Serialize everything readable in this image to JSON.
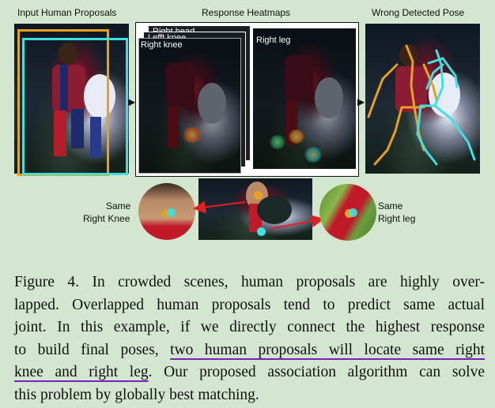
{
  "section_labels": {
    "input": "Input Human Proposals",
    "heatmaps": "Response Heatmaps",
    "wrong": "Wrong Detected Pose"
  },
  "heatmap_panels": {
    "back1": "Right head",
    "back2": "Lefft knee",
    "front_left": "Right knee",
    "front_right": "Right leg"
  },
  "zoom_labels": {
    "left_line1": "Same",
    "left_line2": "Right Knee",
    "right_line1": "Same",
    "right_line2": "Right leg"
  },
  "caption": {
    "line1": "Figure 4. In crowded scenes, human proposals are highly over-",
    "line2": "lapped. Overlapped human proposals tend to predict same actual",
    "line3": "joint. In this example, if we directly connect the highest response",
    "line4_plain": "to build final poses, ",
    "line4_highlight": "two human proposals will locate same right",
    "line5_highlight": "knee and right leg",
    "line5_plain": ". Our proposed association algorithm can solve",
    "line6": "this problem by globally best matching."
  },
  "colors": {
    "background": "#d3e6cf",
    "proposal_orange": "#e8a020",
    "proposal_cyan": "#3fe0e0",
    "arrow_red": "#e02020",
    "highlight_underline": "#7a22b8"
  },
  "icons": [
    "arrow-right-icon",
    "arrow-right-icon",
    "red-arrow-icon",
    "red-arrow-icon"
  ]
}
